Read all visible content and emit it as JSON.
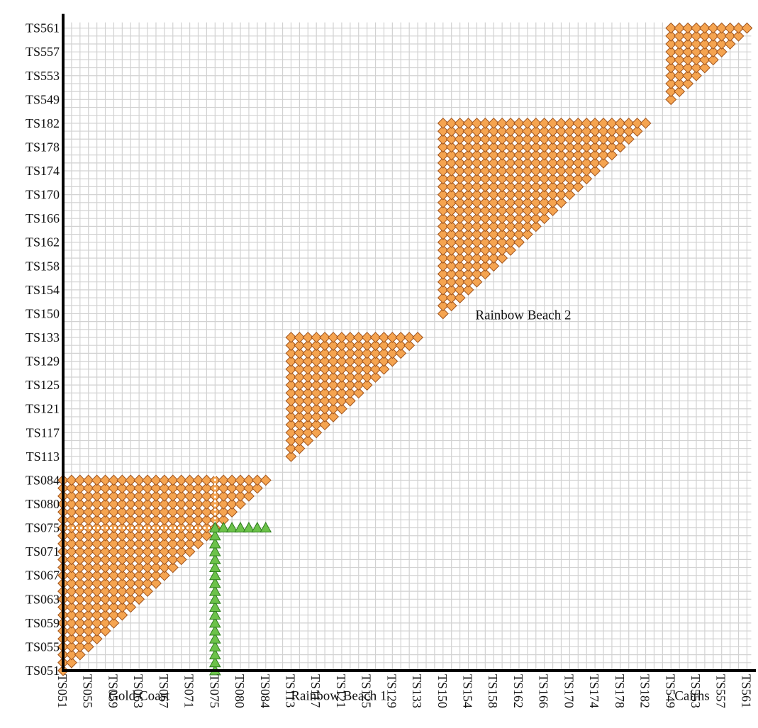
{
  "chart_data": {
    "type": "scatter",
    "title": "",
    "xlabel": "",
    "ylabel": "",
    "x_ticks": [
      "TS051",
      "TS055",
      "TS059",
      "TS063",
      "TS067",
      "TS071",
      "TS075",
      "TS080",
      "TS084",
      "TS113",
      "TS117",
      "TS121",
      "TS125",
      "TS129",
      "TS133",
      "TS150",
      "TS154",
      "TS158",
      "TS162",
      "TS166",
      "TS170",
      "TS174",
      "TS178",
      "TS182",
      "TS549",
      "TS553",
      "TS557",
      "TS561"
    ],
    "y_ticks": [
      "TS051",
      "TS055",
      "TS059",
      "TS063",
      "TS067",
      "TS071",
      "TS075",
      "TS080",
      "TS084",
      "TS113",
      "TS117",
      "TS121",
      "TS125",
      "TS129",
      "TS133",
      "TS150",
      "TS154",
      "TS158",
      "TS162",
      "TS166",
      "TS170",
      "TS174",
      "TS178",
      "TS182",
      "TS549",
      "TS553",
      "TS557",
      "TS561"
    ],
    "grid": true,
    "series": [
      {
        "marker": "diamond",
        "color": "#F5A450",
        "stroke": "#A0521A",
        "blocks": [
          {
            "x_range": [
              "TS051",
              "TS084"
            ],
            "y_range": [
              "TS051",
              "TS084"
            ],
            "shape": "upper-left-triangle"
          },
          {
            "x_range": [
              "TS113",
              "TS133"
            ],
            "y_range": [
              "TS113",
              "TS133"
            ],
            "shape": "upper-left-triangle"
          },
          {
            "x_range": [
              "TS150",
              "TS182"
            ],
            "y_range": [
              "TS150",
              "TS182"
            ],
            "shape": "upper-left-triangle"
          },
          {
            "x_range": [
              "TS549",
              "TS561"
            ],
            "y_range": [
              "TS549",
              "TS561"
            ],
            "shape": "upper-left-triangle"
          }
        ]
      },
      {
        "marker": "triangle",
        "color": "#6CC24A",
        "stroke": "#2E7D1E",
        "segments": [
          {
            "x": "TS075",
            "y_range": [
              "TS051",
              "TS075"
            ]
          },
          {
            "y": "TS075",
            "x_range": [
              "TS075",
              "TS084"
            ]
          }
        ]
      }
    ],
    "annotations": [
      {
        "text": "Gold Coast",
        "x": "TS063",
        "y": "TS053"
      },
      {
        "text": "Rainbow Beach 1",
        "x": "TS121",
        "y": "TS085"
      },
      {
        "text": "Rainbow Beach 2",
        "x": "TS162",
        "y": "TS150"
      },
      {
        "text": "Cairns",
        "x": "TS553",
        "y": "TS550"
      }
    ]
  }
}
